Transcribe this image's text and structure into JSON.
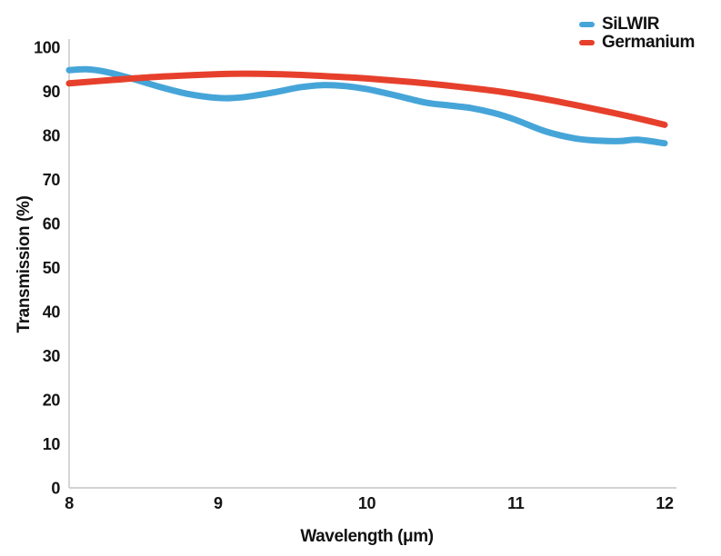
{
  "chart_data": {
    "type": "line",
    "title": "",
    "xlabel": "Wavelength (μm)",
    "ylabel": "Transmission (%)",
    "xlim": [
      8,
      12
    ],
    "ylim": [
      0,
      100
    ],
    "x_ticks": [
      8,
      9,
      10,
      11,
      12
    ],
    "y_ticks": [
      0,
      10,
      20,
      30,
      40,
      50,
      60,
      70,
      80,
      90,
      100
    ],
    "grid": false,
    "legend_position": "top-right",
    "axis_color": "#c4c4c4",
    "tick_text_color": "#141414",
    "line_width": 7,
    "series": [
      {
        "name": "SiLWIR",
        "color": "#46A5D8",
        "x": [
          8.0,
          8.12,
          8.25,
          8.4,
          8.6,
          8.8,
          9.0,
          9.15,
          9.35,
          9.55,
          9.7,
          9.85,
          10.0,
          10.2,
          10.4,
          10.55,
          10.7,
          10.85,
          11.0,
          11.2,
          11.4,
          11.55,
          11.7,
          11.82,
          12.0
        ],
        "y": [
          94.8,
          95.0,
          94.4,
          93.1,
          91.1,
          89.4,
          88.5,
          88.6,
          89.6,
          90.9,
          91.4,
          91.2,
          90.5,
          89.0,
          87.4,
          86.8,
          86.2,
          85.1,
          83.5,
          80.9,
          79.3,
          78.8,
          78.7,
          79.0,
          78.2
        ]
      },
      {
        "name": "Germanium",
        "color": "#E6402C",
        "x": [
          8.0,
          8.3,
          8.6,
          9.0,
          9.2,
          9.5,
          9.8,
          10.0,
          10.3,
          10.6,
          10.9,
          11.2,
          11.5,
          11.75,
          12.0
        ],
        "y": [
          91.8,
          92.6,
          93.3,
          93.9,
          94.0,
          93.8,
          93.3,
          92.9,
          92.1,
          91.1,
          89.9,
          88.2,
          86.2,
          84.4,
          82.4
        ]
      }
    ]
  }
}
